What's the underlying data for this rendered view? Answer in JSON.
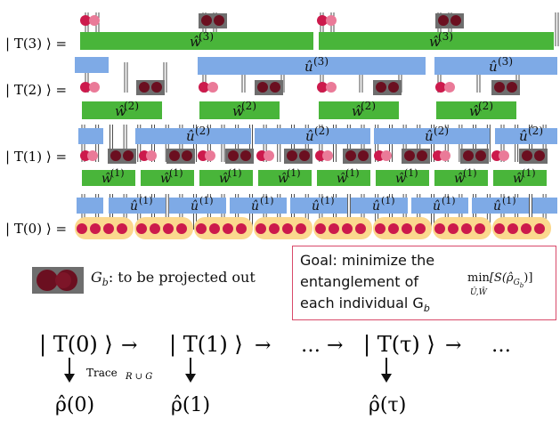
{
  "state_labels": {
    "t3": "| T(3) ⟩ =",
    "t2": "| T(2) ⟩ =",
    "t1": "| T(1) ⟩ =",
    "t0": "| T(0) ⟩ ="
  },
  "gate_labels": {
    "w": "ŵ",
    "u": "û",
    "sup1": "(1)",
    "sup2": "(2)",
    "sup3": "(3)"
  },
  "legend": {
    "gb_symbol": "G",
    "gb_sub": "b",
    "gb_text": ": to be projected out"
  },
  "goal": {
    "line1": "Goal: minimize the",
    "line2": "entanglement of",
    "line3": "each individual G",
    "line3_sub": "b",
    "formula_min": "min",
    "formula_under": "Û,Ŵ",
    "formula_body": "[S(ρ̂",
    "formula_sub": "G",
    "formula_subsub": "b",
    "formula_end": ")]"
  },
  "flow": {
    "k0": "| T(0) ⟩",
    "k1": "| T(1) ⟩",
    "kt": "| T(τ) ⟩",
    "arrow": "→",
    "dots": "…",
    "dots_arrow": "… →",
    "trace": "Trace",
    "trace_sub": "R ∪ G",
    "rho0": "ρ̂(0)",
    "rho1": "ρ̂(1)",
    "rhot": "ρ̂(τ)"
  },
  "colors": {
    "green": "#49b53a",
    "blue": "#7eaae6",
    "red": "#cc1a4c",
    "pink": "#ea7a98",
    "dark": "#6b0f20",
    "grey": "#6e6e6e",
    "yellow": "#fbd88e"
  }
}
